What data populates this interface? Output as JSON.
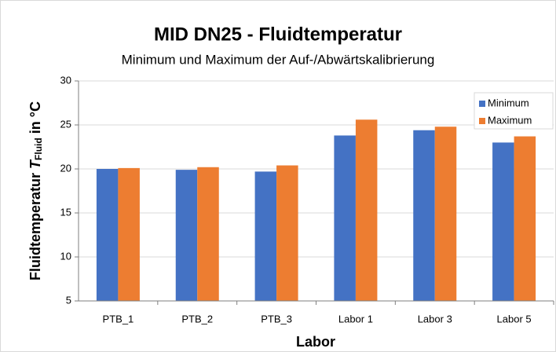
{
  "chart_data": {
    "type": "bar",
    "title": "MID DN25 - Fluidtemperatur",
    "subtitle": "Minimum und Maximum der Auf-/Abwärtskalibrierung",
    "x_label": "Labor",
    "y_label": {
      "text": "Fluidtemperatur",
      "symbol": "T",
      "subscript": "Fluid",
      "unit": "in °C"
    },
    "categories": [
      "PTB_1",
      "PTB_2",
      "PTB_3",
      "Labor 1",
      "Labor 3",
      "Labor 5"
    ],
    "series": [
      {
        "name": "Minimum",
        "color": "#4472c4",
        "values": [
          20.0,
          19.9,
          19.7,
          23.8,
          24.4,
          23.0
        ]
      },
      {
        "name": "Maximum",
        "color": "#ed7d31",
        "values": [
          20.1,
          20.2,
          20.4,
          25.6,
          24.8,
          23.7
        ]
      }
    ],
    "ylim": [
      5,
      30
    ],
    "yticks": [
      5,
      10,
      15,
      20,
      25,
      30
    ],
    "grid": true,
    "legend": "top-right"
  }
}
